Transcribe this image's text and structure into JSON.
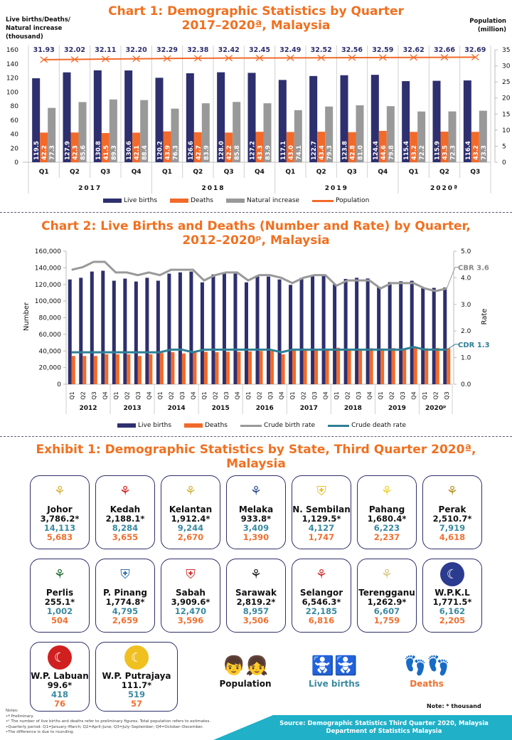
{
  "chart1": {
    "title_line1": "Chart 1: Demographic Statistics by Quarter",
    "title_line2": "2017–2020ª, Malaysia",
    "left_axis_label": [
      "Live births/Deaths/",
      "Natural increase",
      "(thousand)"
    ],
    "right_axis_label": [
      "Population",
      "(million)"
    ],
    "legend": [
      "Live births",
      "Deaths",
      "Natural increase",
      "Population"
    ]
  },
  "chart2": {
    "title_line1": "Chart 2: Live Births and Deaths (Number and Rate) by Quarter,",
    "title_line2": "2012–2020ᵖ, Malaysia",
    "left_axis_label": "Number",
    "right_axis_label": "Rate",
    "cbr_annotation": "CBR 3.6",
    "cdr_annotation": "CDR 1.3",
    "legend": [
      "Live births",
      "Deaths",
      "Crude birth rate",
      "Crude death rate"
    ]
  },
  "chart_data": [
    {
      "type": "bar",
      "title": "Chart 1: Demographic Statistics by Quarter 2017–2020ª, Malaysia",
      "categories": [
        "Q1",
        "Q2",
        "Q3",
        "Q4",
        "Q1",
        "Q2",
        "Q3",
        "Q4",
        "Q1",
        "Q2",
        "Q3",
        "Q4",
        "Q1",
        "Q2",
        "Q3"
      ],
      "groups": [
        {
          "label": "2017",
          "span": 4
        },
        {
          "label": "2018",
          "span": 4
        },
        {
          "label": "2019",
          "span": 4
        },
        {
          "label": "2020ª",
          "span": 3
        }
      ],
      "series": [
        {
          "name": "Live births",
          "axis": "left",
          "color": "#2e2f6e",
          "values": [
            119.5,
            127.9,
            130.8,
            130.6,
            120.2,
            126.6,
            128.0,
            127.2,
            117.1,
            122.7,
            123.8,
            124.4,
            115.4,
            115.9,
            116.4
          ]
        },
        {
          "name": "Deaths",
          "axis": "left",
          "color": "#f26a2a",
          "values": [
            42.2,
            42.3,
            41.5,
            42.1,
            43.9,
            42.7,
            42.2,
            43.3,
            43.0,
            43.4,
            42.8,
            44.6,
            43.2,
            43.5,
            43.2
          ]
        },
        {
          "name": "Natural increase",
          "axis": "left",
          "color": "#999999",
          "values": [
            77.3,
            85.6,
            89.3,
            88.4,
            76.3,
            83.9,
            85.8,
            83.9,
            74.1,
            79.3,
            81.0,
            79.8,
            72.2,
            72.3,
            73.3
          ]
        },
        {
          "name": "Population",
          "axis": "right",
          "type": "line",
          "color": "#f26a2a",
          "values": [
            31.93,
            32.02,
            32.11,
            32.2,
            32.29,
            32.38,
            32.42,
            32.45,
            32.49,
            32.52,
            32.56,
            32.59,
            32.62,
            32.66,
            32.69
          ]
        }
      ],
      "ylabel": "Live births/Deaths/Natural increase (thousand)",
      "ylim": [
        0,
        160
      ],
      "yticks": [
        0,
        20,
        40,
        60,
        80,
        100,
        120,
        140,
        160
      ],
      "y2label": "Population (million)",
      "y2lim": [
        0,
        35
      ],
      "y2ticks": [
        0,
        5,
        10,
        15,
        20,
        25,
        30,
        35
      ],
      "legend_position": "bottom"
    },
    {
      "type": "bar",
      "title": "Chart 2: Live Births and Deaths (Number and Rate) by Quarter, 2012–2020ᵖ, Malaysia",
      "categories": [
        "Q1",
        "Q2",
        "Q3",
        "Q4",
        "Q1",
        "Q2",
        "Q3",
        "Q4",
        "Q1",
        "Q2",
        "Q3",
        "Q4",
        "Q1",
        "Q2",
        "Q3",
        "Q4",
        "Q1",
        "Q2",
        "Q3",
        "Q4",
        "Q1",
        "Q2",
        "Q3",
        "Q4",
        "Q1",
        "Q2",
        "Q3",
        "Q4",
        "Q1",
        "Q2",
        "Q3",
        "Q4",
        "Q1",
        "Q2",
        "Q3"
      ],
      "groups": [
        {
          "label": "2012",
          "span": 4
        },
        {
          "label": "2013",
          "span": 4
        },
        {
          "label": "2014",
          "span": 4
        },
        {
          "label": "2015",
          "span": 4
        },
        {
          "label": "2016",
          "span": 4
        },
        {
          "label": "2017",
          "span": 4
        },
        {
          "label": "2018",
          "span": 4
        },
        {
          "label": "2019",
          "span": 4
        },
        {
          "label": "2020ᵖ",
          "span": 3
        }
      ],
      "series": [
        {
          "name": "Live births",
          "axis": "left",
          "color": "#2e2f6e",
          "values": [
            126000,
            128000,
            135500,
            136500,
            124500,
            127000,
            123500,
            128000,
            124500,
            133000,
            134500,
            135500,
            122500,
            132000,
            133000,
            133000,
            122500,
            131000,
            129500,
            126000,
            119500,
            127900,
            130800,
            130600,
            120200,
            126600,
            128000,
            127200,
            117100,
            122700,
            123800,
            124400,
            115400,
            115900,
            116400
          ]
        },
        {
          "name": "Deaths",
          "axis": "left",
          "color": "#f26a2a",
          "values": [
            34000,
            34000,
            34000,
            36000,
            36000,
            36000,
            34000,
            36000,
            37500,
            38500,
            37000,
            38000,
            39000,
            38500,
            39000,
            39000,
            39500,
            40000,
            40000,
            36000,
            42200,
            42300,
            41500,
            42100,
            43900,
            42700,
            42200,
            43300,
            43000,
            43400,
            42800,
            44600,
            43200,
            43500,
            43200
          ]
        },
        {
          "name": "Crude birth rate",
          "axis": "right",
          "type": "line",
          "color": "#999999",
          "values": [
            4.3,
            4.4,
            4.6,
            4.6,
            4.2,
            4.2,
            4.1,
            4.2,
            4.1,
            4.3,
            4.3,
            4.3,
            3.9,
            4.1,
            4.2,
            4.2,
            3.9,
            4.1,
            4.1,
            4.0,
            3.8,
            4.0,
            4.1,
            4.1,
            3.7,
            3.9,
            3.9,
            3.9,
            3.6,
            3.8,
            3.8,
            3.8,
            3.6,
            3.5,
            3.6
          ]
        },
        {
          "name": "Crude death rate",
          "axis": "right",
          "type": "line",
          "color": "#2f7f95",
          "values": [
            1.2,
            1.2,
            1.2,
            1.2,
            1.2,
            1.2,
            1.2,
            1.2,
            1.2,
            1.3,
            1.3,
            1.2,
            1.3,
            1.3,
            1.3,
            1.3,
            1.3,
            1.3,
            1.3,
            1.2,
            1.3,
            1.3,
            1.3,
            1.3,
            1.3,
            1.3,
            1.3,
            1.3,
            1.3,
            1.3,
            1.3,
            1.4,
            1.3,
            1.3,
            1.3
          ]
        }
      ],
      "ylabel": "Number",
      "ylim": [
        0,
        160000
      ],
      "yticks": [
        0,
        20000,
        40000,
        60000,
        80000,
        100000,
        120000,
        140000,
        160000
      ],
      "y2label": "Rate",
      "y2lim": [
        0,
        5.0
      ],
      "y2ticks": [
        0.0,
        1.0,
        2.0,
        3.0,
        4.0,
        5.0
      ],
      "annotations": [
        "CBR 3.6",
        "CDR 1.3"
      ],
      "legend_position": "bottom"
    }
  ],
  "exhibit": {
    "title_line1": "Exhibit 1: Demographic Statistics by State, Third Quarter 2020ª,",
    "title_line2": "Malaysia",
    "states": [
      {
        "name": "Johor",
        "population": "3,786.2*",
        "births": "14,113",
        "deaths": "5,683",
        "icon": "crest-icon",
        "color": "#d4b23a"
      },
      {
        "name": "Kedah",
        "population": "2,188.1*",
        "births": "8,284",
        "deaths": "3,655",
        "icon": "crest-icon",
        "color": "#d81f1f"
      },
      {
        "name": "Kelantan",
        "population": "1,912.4*",
        "births": "9,244",
        "deaths": "2,670",
        "icon": "crest-icon",
        "color": "#d4b23a"
      },
      {
        "name": "Melaka",
        "population": "933.8*",
        "births": "3,409",
        "deaths": "1,390",
        "icon": "crest-icon",
        "color": "#2f4f8f"
      },
      {
        "name": "N. Sembilan",
        "population": "1,129.5*",
        "births": "4,127",
        "deaths": "1,747",
        "icon": "shield-icon",
        "color": "#e8c020"
      },
      {
        "name": "Pahang",
        "population": "1,680.4*",
        "births": "6,223",
        "deaths": "2,237",
        "icon": "crest-icon",
        "color": "#f0d020"
      },
      {
        "name": "Perak",
        "population": "2,510.7*",
        "births": "7,919",
        "deaths": "4,618",
        "icon": "crest-icon",
        "color": "#b89020"
      },
      {
        "name": "Perlis",
        "population": "255.1*",
        "births": "1,002",
        "deaths": "504",
        "icon": "crest-icon",
        "color": "#1f6b2f"
      },
      {
        "name": "P. Pinang",
        "population": "1,774.8*",
        "births": "4,795",
        "deaths": "2,659",
        "icon": "shield-icon",
        "color": "#2f6fa8"
      },
      {
        "name": "Sabah",
        "population": "3,909.6*",
        "births": "12,470",
        "deaths": "3,596",
        "icon": "shield-icon",
        "color": "#d03030"
      },
      {
        "name": "Sarawak",
        "population": "2,819.2*",
        "births": "8,957",
        "deaths": "3,506",
        "icon": "crest-icon",
        "color": "#222222"
      },
      {
        "name": "Selangor",
        "population": "6,546.3*",
        "births": "22,185",
        "deaths": "6,816",
        "icon": "crest-icon",
        "color": "#d03030"
      },
      {
        "name": "Terengganu",
        "population": "1,262.9*",
        "births": "6,607",
        "deaths": "1,759",
        "icon": "crest-icon",
        "color": "#d8c880"
      },
      {
        "name": "W.P.K.L",
        "population": "1,771.5*",
        "births": "6,162",
        "deaths": "2,205",
        "icon": "flag-icon",
        "color": "#2b3b8f"
      },
      {
        "name": "W.P. Labuan",
        "population": "99.6*",
        "births": "418",
        "deaths": "76",
        "icon": "flag-icon",
        "color": "#d02020"
      },
      {
        "name": "W.P. Putrajaya",
        "population": "111.7*",
        "births": "519",
        "deaths": "57",
        "icon": "flag-icon",
        "color": "#f0c020"
      }
    ],
    "key": {
      "population": "Population",
      "births": "Live births",
      "deaths": "Deaths"
    },
    "note_thousand": "Note: * thousand"
  },
  "notes": {
    "heading": "Notes:",
    "lines": [
      "•ª Preliminary.",
      "•ᵖ The number of live births and deaths refer to preliminary figures. Total population refers to estimates.",
      "•Quarterly period: Q1=January–March; Q2=April–June; Q3=July–September; Q4=October–December.",
      "•The difference is due to rounding."
    ]
  },
  "source": {
    "line1": "Source: Demographic Statistics Third Quarter 2020, Malaysia",
    "line2": "Department of Statistics Malaysia"
  }
}
